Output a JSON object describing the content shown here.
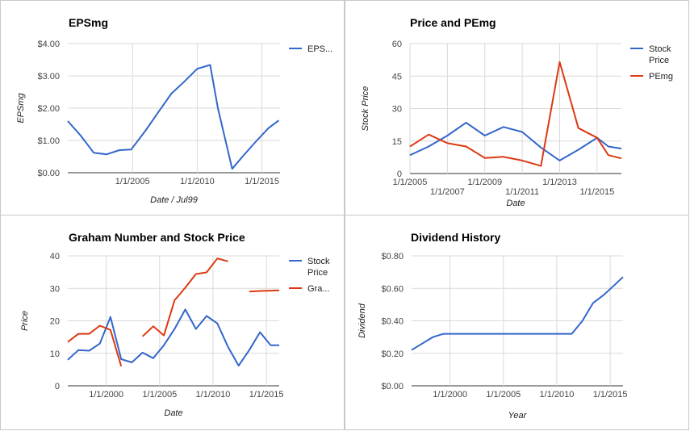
{
  "colors": {
    "blue": "#3366cc",
    "red": "#dc3912"
  },
  "chart_data": [
    {
      "type": "line",
      "title": "EPSmg",
      "xlabel": "Date / Jul99",
      "ylabel": "EPSmg",
      "x_domain": [
        2000.0,
        2016.4
      ],
      "ylim": [
        0,
        4
      ],
      "y_ticks": [
        {
          "v": 0,
          "label": "$0.00"
        },
        {
          "v": 1,
          "label": "$1.00"
        },
        {
          "v": 2,
          "label": "$2.00"
        },
        {
          "v": 3,
          "label": "$3.00"
        },
        {
          "v": 4,
          "label": "$4.00"
        }
      ],
      "x_ticks": [
        {
          "v": 2005,
          "label": "1/1/2005",
          "row": 0
        },
        {
          "v": 2010,
          "label": "1/1/2010",
          "row": 0
        },
        {
          "v": 2015,
          "label": "1/1/2015",
          "row": 0
        }
      ],
      "legend_position": "right",
      "series": [
        {
          "name": "EPS...",
          "color": "#3366cc",
          "x": [
            2000.0,
            2001.0,
            2002.0,
            2003.0,
            2004.0,
            2004.9,
            2006.0,
            2007.0,
            2008.0,
            2009.0,
            2010.0,
            2011.0,
            2011.6,
            2012.7,
            2013.5,
            2014.5,
            2015.5,
            2016.3
          ],
          "y": [
            1.6,
            1.15,
            0.62,
            0.57,
            0.7,
            0.72,
            1.3,
            1.88,
            2.45,
            2.82,
            3.22,
            3.34,
            2.0,
            0.12,
            0.5,
            0.95,
            1.38,
            1.62
          ]
        }
      ]
    },
    {
      "type": "line",
      "title": "Price and PEmg",
      "xlabel": "Date",
      "ylabel": "Stock Price",
      "x_domain": [
        2005.0,
        2016.3
      ],
      "ylim": [
        0,
        60
      ],
      "y_ticks": [
        {
          "v": 0,
          "label": "0"
        },
        {
          "v": 15,
          "label": "15"
        },
        {
          "v": 30,
          "label": "30"
        },
        {
          "v": 45,
          "label": "45"
        },
        {
          "v": 60,
          "label": "60"
        }
      ],
      "x_ticks": [
        {
          "v": 2005,
          "label": "1/1/2005",
          "row": 0
        },
        {
          "v": 2007,
          "label": "1/1/2007",
          "row": 1
        },
        {
          "v": 2009,
          "label": "1/1/2009",
          "row": 0
        },
        {
          "v": 2011,
          "label": "1/1/2011",
          "row": 1
        },
        {
          "v": 2013,
          "label": "1/1/2013",
          "row": 0
        },
        {
          "v": 2015,
          "label": "1/1/2015",
          "row": 1
        }
      ],
      "legend_position": "right",
      "series": [
        {
          "name": "Stock Price",
          "color": "#3366cc",
          "x": [
            2005.0,
            2006.0,
            2007.0,
            2008.0,
            2009.0,
            2010.0,
            2011.0,
            2012.0,
            2013.0,
            2014.0,
            2015.0,
            2015.6,
            2016.3
          ],
          "y": [
            8.5,
            12.5,
            17.5,
            23.5,
            17.5,
            21.5,
            19.2,
            12.0,
            6.0,
            11.0,
            16.5,
            12.5,
            11.5
          ]
        },
        {
          "name": "PEmg",
          "color": "#dc3912",
          "x": [
            2005.0,
            2006.0,
            2007.0,
            2008.0,
            2009.0,
            2010.0,
            2011.0,
            2012.0,
            2013.0,
            2014.0,
            2015.0,
            2015.6,
            2016.3
          ],
          "y": [
            12.5,
            18.0,
            14.0,
            12.5,
            7.2,
            7.7,
            6.0,
            3.5,
            51.5,
            21.0,
            16.5,
            8.5,
            7.0
          ]
        }
      ]
    },
    {
      "type": "line",
      "title": "Graham Number and Stock Price",
      "xlabel": "Date",
      "ylabel": "Price",
      "x_domain": [
        1996.4,
        2016.2
      ],
      "ylim": [
        0,
        40
      ],
      "y_ticks": [
        {
          "v": 0,
          "label": "0"
        },
        {
          "v": 10,
          "label": "10"
        },
        {
          "v": 20,
          "label": "20"
        },
        {
          "v": 30,
          "label": "30"
        },
        {
          "v": 40,
          "label": "40"
        }
      ],
      "x_ticks": [
        {
          "v": 2000,
          "label": "1/1/2000",
          "row": 0
        },
        {
          "v": 2005,
          "label": "1/1/2005",
          "row": 0
        },
        {
          "v": 2010,
          "label": "1/1/2010",
          "row": 0
        },
        {
          "v": 2015,
          "label": "1/1/2015",
          "row": 0
        }
      ],
      "legend_position": "right",
      "series": [
        {
          "name": "Stock Price",
          "color": "#3366cc",
          "x": [
            1996.4,
            1997.4,
            1998.4,
            1999.4,
            2000.4,
            2001.4,
            2002.4,
            2003.4,
            2004.4,
            2005.4,
            2006.4,
            2007.4,
            2008.4,
            2009.4,
            2010.4,
            2011.4,
            2012.4,
            2013.4,
            2014.4,
            2015.4,
            2016.2
          ],
          "y": [
            8.0,
            11.0,
            10.8,
            13.0,
            21.2,
            8.2,
            7.2,
            10.2,
            8.5,
            12.5,
            17.5,
            23.5,
            17.5,
            21.5,
            19.2,
            12.0,
            6.2,
            11.0,
            16.5,
            12.5,
            12.5
          ],
          "gaps": []
        },
        {
          "name": "Gra...",
          "color": "#dc3912",
          "segments": [
            {
              "x": [
                1996.4,
                1997.4,
                1998.4,
                1999.4,
                2000.4,
                2001.4
              ],
              "y": [
                13.5,
                16.0,
                16.0,
                18.5,
                17.2,
                6.0
              ]
            },
            {
              "x": [
                2003.4,
                2004.4,
                2005.4,
                2006.4,
                2007.4,
                2008.4,
                2009.4,
                2010.4,
                2011.4
              ],
              "y": [
                15.2,
                18.3,
                15.5,
                26.3,
                30.2,
                34.4,
                34.9,
                39.2,
                38.3
              ]
            },
            {
              "x": [
                2013.4,
                2014.4,
                2015.4,
                2016.2
              ],
              "y": [
                29.0,
                29.2,
                29.3,
                29.4
              ]
            }
          ]
        }
      ]
    },
    {
      "type": "line",
      "title": "Dividend History",
      "xlabel": "Year",
      "ylabel": "Dividend",
      "x_domain": [
        1996.4,
        2016.2
      ],
      "ylim": [
        0,
        0.8
      ],
      "y_ticks": [
        {
          "v": 0,
          "label": "$0.00"
        },
        {
          "v": 0.2,
          "label": "$0.20"
        },
        {
          "v": 0.4,
          "label": "$0.40"
        },
        {
          "v": 0.6,
          "label": "$0.60"
        },
        {
          "v": 0.8,
          "label": "$0.80"
        }
      ],
      "x_ticks": [
        {
          "v": 2000,
          "label": "1/1/2000",
          "row": 0
        },
        {
          "v": 2005,
          "label": "1/1/2005",
          "row": 0
        },
        {
          "v": 2010,
          "label": "1/1/2010",
          "row": 0
        },
        {
          "v": 2015,
          "label": "1/1/2015",
          "row": 0
        }
      ],
      "legend_position": "none",
      "series": [
        {
          "name": "",
          "color": "#3366cc",
          "x": [
            1996.4,
            1997.4,
            1998.4,
            1999.4,
            2000.4,
            2001.4,
            2002.4,
            2003.4,
            2004.4,
            2005.4,
            2006.4,
            2007.4,
            2008.4,
            2009.4,
            2010.4,
            2011.4,
            2012.4,
            2013.4,
            2014.4,
            2015.4,
            2016.2
          ],
          "y": [
            0.22,
            0.26,
            0.3,
            0.32,
            0.32,
            0.32,
            0.32,
            0.32,
            0.32,
            0.32,
            0.32,
            0.32,
            0.32,
            0.32,
            0.32,
            0.32,
            0.4,
            0.51,
            0.56,
            0.62,
            0.67
          ]
        }
      ]
    }
  ]
}
